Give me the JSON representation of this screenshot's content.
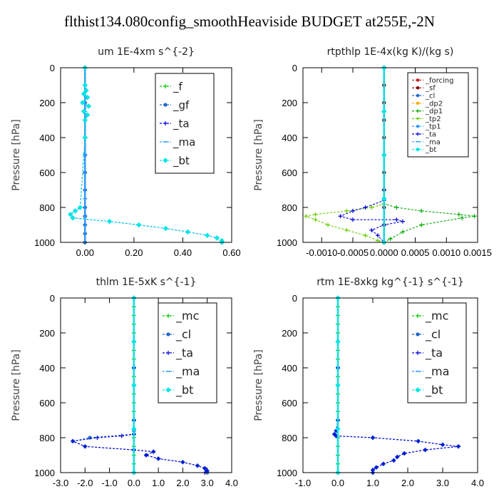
{
  "title": "flthist134.080config_smoothHeaviside  BUDGET at255E,-2N",
  "colors": {
    "f": "#00cc00",
    "gf": "#2266cc",
    "ta": "#0000dd",
    "ma": "#3399ff",
    "bt": "#00e5e5",
    "forcing": "#cc2222",
    "sf": "#880000",
    "cl": "#2266cc",
    "dp2": "#ffaa00",
    "dp1": "#00aa00",
    "tp2": "#66cc00",
    "tp1": "#3399ff",
    "mc": "#00cc00"
  },
  "chart_data": [
    {
      "type": "line",
      "title": "um   1E-4xm s^{-2}",
      "ylabel": "Pressure [hPa]",
      "xlim": [
        -0.1,
        0.6
      ],
      "xticks": [
        0.0,
        0.2,
        0.4,
        0.6
      ],
      "xtick_labels": [
        "0.00",
        "0.20",
        "0.40",
        "0.60"
      ],
      "ylim": [
        1000,
        0
      ],
      "yticks": [
        0,
        200,
        400,
        600,
        800,
        1000
      ],
      "legend_location": "top-right",
      "legend_font": 15,
      "series": [
        {
          "name": "_f",
          "key": "f",
          "x": [
            0,
            0,
            0,
            0,
            0,
            0,
            0,
            0,
            0,
            0,
            0,
            0,
            0
          ],
          "y": [
            0,
            100,
            200,
            300,
            400,
            500,
            600,
            700,
            800,
            850,
            900,
            950,
            1000
          ]
        },
        {
          "name": "_gf",
          "key": "gf",
          "x": [
            0,
            0,
            0,
            0,
            0,
            0,
            0,
            0,
            0,
            0,
            0,
            0,
            0
          ],
          "y": [
            0,
            100,
            200,
            300,
            400,
            500,
            600,
            700,
            800,
            850,
            900,
            950,
            1000
          ]
        },
        {
          "name": "_ta",
          "key": "ta",
          "x": [
            0,
            0,
            0.005,
            -0.005,
            0.01,
            -0.01,
            0.015,
            -0.005,
            0.01,
            0,
            0,
            -0.02,
            -0.04,
            -0.06,
            -0.05,
            0.1,
            0.22,
            0.33,
            0.42,
            0.5,
            0.54,
            0.56,
            0.56
          ],
          "y": [
            0,
            100,
            130,
            150,
            170,
            200,
            220,
            250,
            270,
            300,
            400,
            800,
            820,
            840,
            860,
            880,
            900,
            920,
            940,
            960,
            975,
            990,
            1000
          ]
        },
        {
          "name": "_ma",
          "key": "ma",
          "x": [
            0,
            0,
            0,
            0,
            0
          ],
          "y": [
            0,
            250,
            500,
            750,
            1000
          ]
        },
        {
          "name": "_bt",
          "key": "bt",
          "x": [
            0,
            0,
            0.005,
            -0.005,
            0.01,
            -0.01,
            0.015,
            -0.005,
            0.01,
            0,
            0,
            -0.02,
            -0.04,
            -0.06,
            -0.05,
            0.1,
            0.22,
            0.33,
            0.42,
            0.5,
            0.54,
            0.56,
            0.56
          ],
          "y": [
            0,
            100,
            130,
            150,
            170,
            200,
            220,
            250,
            270,
            300,
            400,
            800,
            820,
            840,
            860,
            880,
            900,
            920,
            940,
            960,
            975,
            990,
            1000
          ]
        }
      ]
    },
    {
      "type": "line",
      "title": "rtpthlp   1E-4x(kg K)/(kg s)",
      "ylabel": "Pressure [hPa]",
      "xlim": [
        -0.0013,
        0.0015
      ],
      "xticks": [
        -0.001,
        -0.0005,
        0.0,
        0.0005,
        0.001,
        0.0015
      ],
      "xtick_labels": [
        "-0.0010",
        "-0.0005",
        "0.0000",
        "0.0005",
        "0.0010",
        "0.0015"
      ],
      "ylim": [
        1000,
        0
      ],
      "yticks": [
        0,
        200,
        400,
        600,
        800,
        1000
      ],
      "legend_location": "top-right",
      "legend_font": 10,
      "series": [
        {
          "name": "_forcing",
          "key": "forcing",
          "x": [
            0,
            0,
            0,
            0,
            0,
            0,
            0,
            0,
            0,
            0,
            0
          ],
          "y": [
            0,
            100,
            200,
            300,
            400,
            500,
            600,
            700,
            800,
            900,
            1000
          ]
        },
        {
          "name": "_sf",
          "key": "sf",
          "x": [
            0,
            0,
            0,
            0,
            0,
            0,
            0,
            0,
            0,
            0,
            0
          ],
          "y": [
            0,
            100,
            200,
            300,
            400,
            500,
            600,
            700,
            800,
            900,
            1000
          ]
        },
        {
          "name": "_cl",
          "key": "cl",
          "x": [
            0,
            0,
            0,
            0,
            0
          ],
          "y": [
            0,
            250,
            500,
            750,
            1000
          ]
        },
        {
          "name": "_dp2",
          "key": "dp2",
          "x": [
            0,
            0,
            0,
            0,
            0
          ],
          "y": [
            0,
            250,
            500,
            750,
            1000
          ]
        },
        {
          "name": "_dp1",
          "key": "dp1",
          "x": [
            0,
            0,
            0,
            0.0002,
            0.0006,
            0.0012,
            0.00145,
            0.00125,
            0.0006,
            0.0003,
            0.0001,
            0
          ],
          "y": [
            0,
            700,
            780,
            800,
            820,
            840,
            850,
            860,
            900,
            940,
            980,
            1000
          ]
        },
        {
          "name": "_tp2",
          "key": "tp2",
          "x": [
            0,
            0,
            0,
            -0.0002,
            -0.0006,
            -0.0011,
            -0.00125,
            -0.0011,
            -0.0009,
            -0.0006,
            -0.0003,
            -0.0001,
            0
          ],
          "y": [
            0,
            700,
            780,
            800,
            820,
            840,
            850,
            870,
            900,
            930,
            960,
            990,
            1000
          ]
        },
        {
          "name": "_tp1",
          "key": "tp1",
          "x": [
            0,
            0,
            0,
            0,
            0
          ],
          "y": [
            0,
            250,
            500,
            750,
            1000
          ]
        },
        {
          "name": "_ta",
          "key": "ta",
          "x": [
            0,
            0,
            0,
            -0.0003,
            -0.0005,
            -0.0007,
            -0.0005,
            0.0002,
            0.0003,
            0,
            -0.0002,
            -0.0001,
            0
          ],
          "y": [
            0,
            700,
            760,
            800,
            820,
            850,
            870,
            870,
            880,
            900,
            930,
            960,
            1000
          ]
        },
        {
          "name": "_ma",
          "key": "ma",
          "x": [
            0,
            0,
            0,
            0,
            0
          ],
          "y": [
            0,
            250,
            500,
            750,
            1000
          ]
        },
        {
          "name": "_bt",
          "key": "bt",
          "x": [
            0,
            0,
            0,
            0,
            0
          ],
          "y": [
            0,
            250,
            500,
            750,
            1000
          ]
        }
      ]
    },
    {
      "type": "line",
      "title": "thlm   1E-5xK  s^{-1}",
      "ylabel": "Pressure [hPa]",
      "xlim": [
        -3.0,
        4.0
      ],
      "xticks": [
        -3.0,
        -2.0,
        -1.0,
        0.0,
        1.0,
        2.0,
        3.0,
        4.0
      ],
      "xtick_labels": [
        "-3.0",
        "-2.0",
        "-1.0",
        "0.0",
        "1.0",
        "2.0",
        "3.0",
        "4.0"
      ],
      "ylim": [
        1000,
        0
      ],
      "yticks": [
        0,
        200,
        400,
        600,
        800,
        1000
      ],
      "legend_location": "top-right",
      "legend_font": 16,
      "series": [
        {
          "name": "_mc",
          "key": "mc",
          "x": [
            0,
            0,
            0,
            0,
            0,
            0,
            0,
            0,
            0,
            0,
            0,
            0,
            0,
            0,
            0,
            0,
            0,
            0,
            0,
            0,
            0
          ],
          "y": [
            0,
            50,
            100,
            150,
            200,
            250,
            300,
            350,
            400,
            450,
            500,
            550,
            600,
            650,
            700,
            750,
            800,
            850,
            900,
            950,
            1000
          ]
        },
        {
          "name": "_cl",
          "key": "cl",
          "x": [
            0,
            0,
            0,
            0,
            0,
            -1.8,
            -2.5,
            -2.0,
            0,
            0.8,
            0.5,
            1.0,
            2.0,
            2.6,
            2.9,
            3.0,
            3.0
          ],
          "y": [
            0,
            400,
            700,
            760,
            780,
            800,
            820,
            850,
            870,
            880,
            900,
            920,
            940,
            960,
            975,
            990,
            1000
          ]
        },
        {
          "name": "_ta",
          "key": "ta",
          "x": [
            0,
            0,
            0,
            0,
            -0.5,
            -1.5,
            -2.5,
            -2.0,
            0,
            0.8,
            0.5,
            1.0,
            2.0,
            2.6,
            2.9,
            3.0,
            2.9
          ],
          "y": [
            0,
            400,
            700,
            780,
            790,
            800,
            820,
            850,
            870,
            880,
            900,
            920,
            940,
            960,
            975,
            990,
            1000
          ]
        },
        {
          "name": "_ma",
          "key": "ma",
          "x": [
            0,
            0,
            0,
            0,
            0
          ],
          "y": [
            0,
            250,
            500,
            750,
            1000
          ]
        },
        {
          "name": "_bt",
          "key": "bt",
          "x": [
            0,
            0,
            0,
            0,
            0
          ],
          "y": [
            0,
            250,
            500,
            750,
            1000
          ]
        }
      ]
    },
    {
      "type": "line",
      "title": "rtm   1E-8xkg kg^{-1} s^{-1}",
      "ylabel": "Pressure [hPa]",
      "xlim": [
        -1.0,
        4.0
      ],
      "xticks": [
        -1.0,
        0.0,
        1.0,
        2.0,
        3.0,
        4.0
      ],
      "xtick_labels": [
        "-1.0",
        "0.0",
        "1.0",
        "2.0",
        "3.0",
        "4.0"
      ],
      "ylim": [
        1000,
        0
      ],
      "yticks": [
        0,
        200,
        400,
        600,
        800,
        1000
      ],
      "legend_location": "top-right",
      "legend_font": 16,
      "series": [
        {
          "name": "_mc",
          "key": "mc",
          "x": [
            0,
            0,
            0,
            0,
            0,
            0,
            0,
            0,
            0,
            0,
            0,
            0,
            0,
            0,
            0,
            0,
            0,
            0,
            0,
            0,
            0
          ],
          "y": [
            0,
            50,
            100,
            150,
            200,
            250,
            300,
            350,
            400,
            450,
            500,
            550,
            600,
            650,
            700,
            750,
            800,
            850,
            900,
            950,
            1000
          ]
        },
        {
          "name": "_cl",
          "key": "cl",
          "x": [
            0,
            0,
            0,
            -0.05,
            -0.1,
            -0.05,
            1.0,
            2.3,
            3.0,
            3.45,
            2.5,
            1.9,
            1.7,
            1.6,
            1.3,
            1.1,
            1.0,
            1.0
          ],
          "y": [
            0,
            400,
            700,
            760,
            780,
            790,
            800,
            820,
            840,
            850,
            870,
            890,
            910,
            930,
            950,
            970,
            985,
            1000
          ]
        },
        {
          "name": "_ta",
          "key": "ta",
          "x": [
            0,
            0,
            0,
            -0.05,
            -0.1,
            -0.05,
            1.0,
            2.3,
            3.0,
            3.45,
            2.5,
            1.9,
            1.7,
            1.6,
            1.3,
            1.1,
            1.0,
            1.0
          ],
          "y": [
            0,
            400,
            700,
            760,
            780,
            790,
            800,
            820,
            840,
            850,
            870,
            890,
            910,
            930,
            950,
            970,
            985,
            1000
          ]
        },
        {
          "name": "_ma",
          "key": "ma",
          "x": [
            0,
            0,
            0,
            0,
            0
          ],
          "y": [
            0,
            250,
            500,
            750,
            1000
          ]
        },
        {
          "name": "_bt",
          "key": "bt",
          "x": [
            0,
            0,
            0,
            0,
            0
          ],
          "y": [
            0,
            250,
            500,
            750,
            1000
          ]
        }
      ]
    }
  ]
}
